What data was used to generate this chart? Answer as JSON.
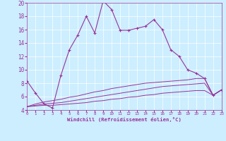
{
  "xlabel": "Windchill (Refroidissement éolien,°C)",
  "bg_color": "#cceeff",
  "line_color": "#993399",
  "x_main": [
    0,
    1,
    2,
    3,
    4,
    5,
    6,
    7,
    8,
    9,
    10,
    11,
    12,
    13,
    14,
    15,
    16,
    17,
    18,
    19,
    20,
    21,
    22,
    23
  ],
  "y_main": [
    8.3,
    6.5,
    4.9,
    4.3,
    9.2,
    13.0,
    15.2,
    18.0,
    15.5,
    20.3,
    19.0,
    15.9,
    15.9,
    16.2,
    16.5,
    17.5,
    16.0,
    13.0,
    12.0,
    10.0,
    9.5,
    8.7,
    6.2,
    7.0
  ],
  "y_line1": [
    4.5,
    4.6,
    4.7,
    4.7,
    4.8,
    4.9,
    5.0,
    5.1,
    5.3,
    5.4,
    5.6,
    5.7,
    5.9,
    6.0,
    6.2,
    6.3,
    6.5,
    6.6,
    6.7,
    6.8,
    6.9,
    6.9,
    6.2,
    7.0
  ],
  "y_line2": [
    4.5,
    4.7,
    4.9,
    5.0,
    5.1,
    5.3,
    5.5,
    5.7,
    5.9,
    6.1,
    6.3,
    6.5,
    6.7,
    6.9,
    7.1,
    7.3,
    7.5,
    7.6,
    7.7,
    7.8,
    7.9,
    8.0,
    6.2,
    7.0
  ],
  "y_line3": [
    4.5,
    4.9,
    5.2,
    5.4,
    5.6,
    5.9,
    6.1,
    6.4,
    6.7,
    6.9,
    7.2,
    7.4,
    7.6,
    7.8,
    8.0,
    8.1,
    8.2,
    8.3,
    8.4,
    8.5,
    8.7,
    8.7,
    6.2,
    7.0
  ],
  "ylim": [
    4,
    20
  ],
  "yticks": [
    4,
    6,
    8,
    10,
    12,
    14,
    16,
    18,
    20
  ],
  "xlim": [
    0,
    23
  ],
  "xticks": [
    0,
    1,
    2,
    3,
    4,
    5,
    6,
    7,
    8,
    9,
    10,
    11,
    12,
    13,
    14,
    15,
    16,
    17,
    18,
    19,
    20,
    21,
    22,
    23
  ]
}
